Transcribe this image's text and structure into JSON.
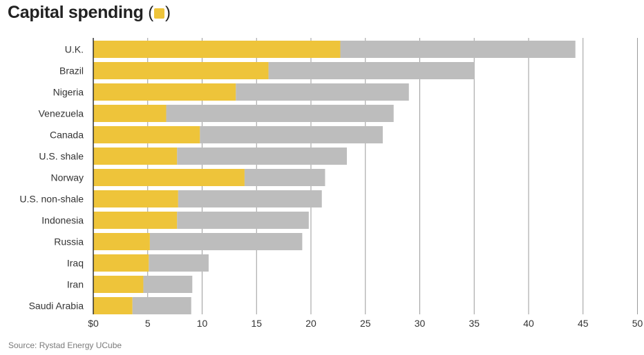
{
  "title": "Capital spending",
  "legend": {
    "open": "(",
    "close": ")",
    "swatch_color": "#EEC43A"
  },
  "source": "Source: Rystad Energy UCube",
  "colors": {
    "capital": "#EEC43A",
    "total": "#BDBDBD",
    "gridline": "#9A9A9A",
    "axis": "#222222"
  },
  "chart_data": {
    "type": "bar",
    "orientation": "horizontal",
    "stacked": true,
    "title": "Capital spending",
    "categories": [
      "U.K.",
      "Brazil",
      "Nigeria",
      "Venezuela",
      "Canada",
      "U.S. shale",
      "Norway",
      "U.S. non-shale",
      "Indonesia",
      "Russia",
      "Iraq",
      "Iran",
      "Saudi Arabia"
    ],
    "series": [
      {
        "name": "Capital spending",
        "color": "#EEC43A",
        "values": [
          22.7,
          16.1,
          13.1,
          6.7,
          9.8,
          7.7,
          13.9,
          7.8,
          7.7,
          5.2,
          5.1,
          4.6,
          3.6
        ]
      },
      {
        "color": "#BDBDBD",
        "values": [
          21.6,
          18.9,
          15.9,
          20.9,
          16.8,
          15.6,
          7.4,
          13.2,
          12.1,
          14.0,
          5.5,
          4.5,
          5.4
        ]
      }
    ],
    "totals": [
      44.3,
      35.0,
      29.0,
      27.6,
      26.6,
      23.3,
      21.3,
      21.0,
      19.8,
      19.2,
      10.6,
      9.1,
      9.0
    ],
    "x_ticks": [
      "$0",
      "5",
      "10",
      "15",
      "20",
      "25",
      "30",
      "35",
      "40",
      "45",
      "50"
    ],
    "xlim": [
      0,
      50
    ],
    "grid": true
  }
}
